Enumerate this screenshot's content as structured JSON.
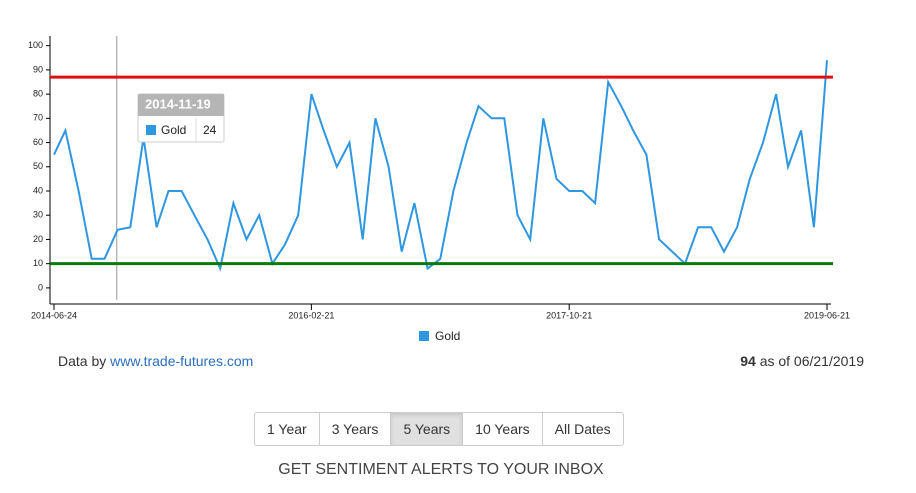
{
  "chart_data": {
    "type": "line",
    "x": [
      "2014-06-24",
      "2014-07-21",
      "2014-08-21",
      "2014-09-21",
      "2014-10-21",
      "2014-11-21",
      "2014-12-21",
      "2015-01-21",
      "2015-02-21",
      "2015-03-21",
      "2015-04-21",
      "2015-05-21",
      "2015-06-21",
      "2015-07-21",
      "2015-08-21",
      "2015-09-21",
      "2015-10-21",
      "2015-11-21",
      "2015-12-21",
      "2016-01-21",
      "2016-02-21",
      "2016-03-21",
      "2016-04-21",
      "2016-05-21",
      "2016-06-21",
      "2016-07-21",
      "2016-08-21",
      "2016-09-21",
      "2016-10-21",
      "2016-11-21",
      "2016-12-21",
      "2017-01-21",
      "2017-02-21",
      "2017-03-21",
      "2017-04-21",
      "2017-05-21",
      "2017-06-21",
      "2017-07-21",
      "2017-08-21",
      "2017-09-21",
      "2017-10-21",
      "2017-11-21",
      "2017-12-21",
      "2018-01-21",
      "2018-02-21",
      "2018-03-21",
      "2018-04-21",
      "2018-05-21",
      "2018-06-21",
      "2018-07-21",
      "2018-08-21",
      "2018-09-21",
      "2018-10-21",
      "2018-11-21",
      "2018-12-21",
      "2019-01-21",
      "2019-02-21",
      "2019-03-21",
      "2019-04-21",
      "2019-05-21",
      "2019-06-21"
    ],
    "series": [
      {
        "name": "Gold",
        "color": "#2f96e0",
        "values": [
          55,
          65,
          40,
          12,
          12,
          24,
          25,
          62,
          25,
          40,
          40,
          30,
          20,
          8,
          35,
          20,
          30,
          10,
          18,
          30,
          80,
          65,
          50,
          60,
          20,
          70,
          50,
          15,
          35,
          8,
          12,
          40,
          60,
          75,
          70,
          70,
          30,
          20,
          70,
          45,
          40,
          40,
          35,
          85,
          75,
          65,
          55,
          20,
          15,
          10,
          25,
          25,
          15,
          25,
          45,
          60,
          80,
          50,
          65,
          25,
          94
        ]
      }
    ],
    "xlim": [
      "2014-06-24",
      "2019-06-21"
    ],
    "xticks": [
      "2014-06-24",
      "2016-02-21",
      "2017-10-21",
      "2019-06-21"
    ],
    "ylim": [
      -5,
      104
    ],
    "yticks": [
      0,
      10,
      20,
      30,
      40,
      50,
      60,
      70,
      80,
      90,
      100
    ],
    "reference_lines": [
      {
        "value": 87,
        "color": "#e01010"
      },
      {
        "value": 10,
        "color": "#0a7a0a"
      }
    ],
    "tooltip": {
      "x": "2014-11-19",
      "series": "Gold",
      "value": 24
    }
  },
  "footer": {
    "prefix": "Data by",
    "link": "www.trade-futures.com",
    "latest": 94,
    "as_of": "as of 06/21/2019"
  },
  "buttons": [
    "1 Year",
    "3 Years",
    "5 Years",
    "10 Years",
    "All Dates"
  ],
  "active_button": 2,
  "cta": "GET SENTIMENT ALERTS TO YOUR INBOX"
}
